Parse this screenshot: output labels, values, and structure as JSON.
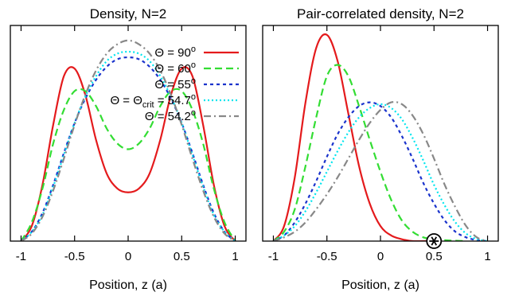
{
  "chart_data": [
    {
      "type": "line",
      "title": "Density, N=2",
      "xlabel": "Position, z (a)",
      "ylabel": "",
      "xlim": [
        -1.1,
        1.1
      ],
      "ylim": [
        0,
        1.15
      ],
      "xticks": [
        "-1",
        "-0.5",
        "0",
        "0.5",
        "1"
      ],
      "yticks": [],
      "legend": "top-right",
      "series": [
        {
          "name": "Θ = 90°",
          "label_main": "Θ = 90",
          "label_sup": "o",
          "color": "#e41a1c",
          "dash": "",
          "x": [
            -1.0,
            -0.9,
            -0.8,
            -0.7,
            -0.6,
            -0.5,
            -0.4,
            -0.3,
            -0.2,
            -0.1,
            0.0,
            0.1,
            0.2,
            0.3,
            0.4,
            0.5,
            0.6,
            0.7,
            0.8,
            0.9,
            1.0
          ],
          "y": [
            0.0,
            0.08,
            0.3,
            0.62,
            0.88,
            0.92,
            0.78,
            0.54,
            0.36,
            0.28,
            0.26,
            0.28,
            0.36,
            0.54,
            0.78,
            0.92,
            0.88,
            0.62,
            0.3,
            0.08,
            0.0
          ]
        },
        {
          "name": "Θ = 60°",
          "label_main": "Θ = 60",
          "label_sup": "o",
          "color": "#33dd33",
          "dash": "9,5",
          "x": [
            -1.0,
            -0.9,
            -0.8,
            -0.7,
            -0.6,
            -0.5,
            -0.4,
            -0.3,
            -0.2,
            -0.1,
            0.0,
            0.1,
            0.2,
            0.3,
            0.4,
            0.5,
            0.6,
            0.7,
            0.8,
            0.9,
            1.0
          ],
          "y": [
            0.0,
            0.1,
            0.28,
            0.52,
            0.7,
            0.8,
            0.8,
            0.72,
            0.6,
            0.52,
            0.49,
            0.52,
            0.6,
            0.72,
            0.8,
            0.8,
            0.7,
            0.52,
            0.28,
            0.1,
            0.0
          ]
        },
        {
          "name": "Θ = 55°",
          "label_main": "Θ = 55",
          "label_sup": "o",
          "color": "#1a33cc",
          "dash": "4,4",
          "x": [
            -1.0,
            -0.9,
            -0.8,
            -0.7,
            -0.6,
            -0.5,
            -0.4,
            -0.3,
            -0.2,
            -0.1,
            0.0,
            0.1,
            0.2,
            0.3,
            0.4,
            0.5,
            0.6,
            0.7,
            0.8,
            0.9,
            1.0
          ],
          "y": [
            0.0,
            0.05,
            0.15,
            0.3,
            0.47,
            0.63,
            0.76,
            0.86,
            0.93,
            0.97,
            0.98,
            0.97,
            0.93,
            0.86,
            0.76,
            0.63,
            0.47,
            0.3,
            0.15,
            0.05,
            0.0
          ]
        },
        {
          "name": "Θ = Θcrit = 54.7°",
          "label_main": "Θ = Θ",
          "label_sub": "crit",
          "label_tail": " = 54.7",
          "label_sup": "o",
          "color": "#00e5ee",
          "dash": "2,3",
          "x": [
            -1.0,
            -0.9,
            -0.8,
            -0.7,
            -0.6,
            -0.5,
            -0.4,
            -0.3,
            -0.2,
            -0.1,
            0.0,
            0.1,
            0.2,
            0.3,
            0.4,
            0.5,
            0.6,
            0.7,
            0.8,
            0.9,
            1.0
          ],
          "y": [
            0.0,
            0.05,
            0.14,
            0.29,
            0.46,
            0.63,
            0.77,
            0.88,
            0.96,
            1.0,
            1.01,
            1.0,
            0.96,
            0.88,
            0.77,
            0.63,
            0.46,
            0.29,
            0.14,
            0.05,
            0.0
          ]
        },
        {
          "name": "Θ = 54.2°",
          "label_main": "Θ = 54.2",
          "label_sup": "o",
          "color": "#888888",
          "dash": "9,4,2,4",
          "x": [
            -1.0,
            -0.9,
            -0.8,
            -0.7,
            -0.6,
            -0.5,
            -0.4,
            -0.3,
            -0.2,
            -0.1,
            0.0,
            0.1,
            0.2,
            0.3,
            0.4,
            0.5,
            0.6,
            0.7,
            0.8,
            0.9,
            1.0
          ],
          "y": [
            0.0,
            0.04,
            0.13,
            0.27,
            0.44,
            0.62,
            0.78,
            0.91,
            1.0,
            1.05,
            1.07,
            1.05,
            1.0,
            0.91,
            0.78,
            0.62,
            0.44,
            0.27,
            0.13,
            0.04,
            0.0
          ]
        }
      ]
    },
    {
      "type": "line",
      "title": "Pair-correlated density, N=2",
      "xlabel": "Position, z (a)",
      "ylabel": "",
      "xlim": [
        -1.1,
        1.1
      ],
      "ylim": [
        0,
        1.15
      ],
      "xticks": [
        "-1",
        "-0.5",
        "0",
        "0.5",
        "1"
      ],
      "yticks": [],
      "marker": {
        "symbol": "circled-asterisk",
        "x": 0.5,
        "y": 0.0
      },
      "series": [
        {
          "name": "Θ = 90°",
          "color": "#e41a1c",
          "dash": "",
          "x": [
            -1.0,
            -0.9,
            -0.8,
            -0.7,
            -0.6,
            -0.5,
            -0.4,
            -0.3,
            -0.2,
            -0.1,
            0.0,
            0.1,
            0.2,
            0.3,
            0.4,
            0.5
          ],
          "y": [
            0.0,
            0.08,
            0.34,
            0.74,
            1.03,
            1.1,
            0.96,
            0.68,
            0.4,
            0.2,
            0.08,
            0.03,
            0.01,
            0.0,
            0.0,
            0.0
          ]
        },
        {
          "name": "Θ = 60°",
          "color": "#33dd33",
          "dash": "9,5",
          "x": [
            -1.0,
            -0.9,
            -0.8,
            -0.7,
            -0.6,
            -0.5,
            -0.4,
            -0.3,
            -0.2,
            -0.1,
            0.0,
            0.1,
            0.2,
            0.3,
            0.4,
            0.5,
            0.6,
            0.7,
            0.8
          ],
          "y": [
            0.0,
            0.05,
            0.17,
            0.4,
            0.66,
            0.88,
            0.94,
            0.88,
            0.72,
            0.54,
            0.37,
            0.22,
            0.11,
            0.05,
            0.02,
            0.01,
            0.005,
            0.002,
            0.0
          ]
        },
        {
          "name": "Θ = 55°",
          "color": "#1a33cc",
          "dash": "4,4",
          "x": [
            -1.0,
            -0.9,
            -0.8,
            -0.7,
            -0.6,
            -0.5,
            -0.4,
            -0.3,
            -0.2,
            -0.1,
            0.0,
            0.1,
            0.2,
            0.3,
            0.4,
            0.5,
            0.6,
            0.7,
            0.8,
            0.9,
            1.0
          ],
          "y": [
            0.0,
            0.03,
            0.1,
            0.2,
            0.32,
            0.45,
            0.57,
            0.66,
            0.72,
            0.74,
            0.72,
            0.66,
            0.56,
            0.44,
            0.31,
            0.2,
            0.11,
            0.05,
            0.02,
            0.005,
            0.0
          ]
        },
        {
          "name": "Θ = Θcrit = 54.7°",
          "color": "#00e5ee",
          "dash": "2,3",
          "x": [
            -1.0,
            -0.9,
            -0.8,
            -0.7,
            -0.6,
            -0.5,
            -0.4,
            -0.3,
            -0.2,
            -0.1,
            0.0,
            0.1,
            0.2,
            0.3,
            0.4,
            0.5,
            0.6,
            0.7,
            0.8,
            0.9,
            1.0
          ],
          "y": [
            0.0,
            0.03,
            0.08,
            0.16,
            0.26,
            0.37,
            0.48,
            0.58,
            0.66,
            0.71,
            0.73,
            0.71,
            0.65,
            0.55,
            0.43,
            0.3,
            0.19,
            0.1,
            0.04,
            0.01,
            0.0
          ]
        },
        {
          "name": "Θ = 54.2°",
          "color": "#888888",
          "dash": "9,4,2,4",
          "x": [
            -1.0,
            -0.9,
            -0.8,
            -0.7,
            -0.6,
            -0.5,
            -0.4,
            -0.3,
            -0.2,
            -0.1,
            0.0,
            0.1,
            0.2,
            0.3,
            0.4,
            0.5,
            0.6,
            0.7,
            0.8,
            0.9,
            1.0
          ],
          "y": [
            0.0,
            0.02,
            0.05,
            0.1,
            0.17,
            0.25,
            0.34,
            0.44,
            0.54,
            0.63,
            0.7,
            0.74,
            0.73,
            0.67,
            0.57,
            0.44,
            0.3,
            0.18,
            0.08,
            0.02,
            0.0
          ]
        }
      ]
    }
  ]
}
